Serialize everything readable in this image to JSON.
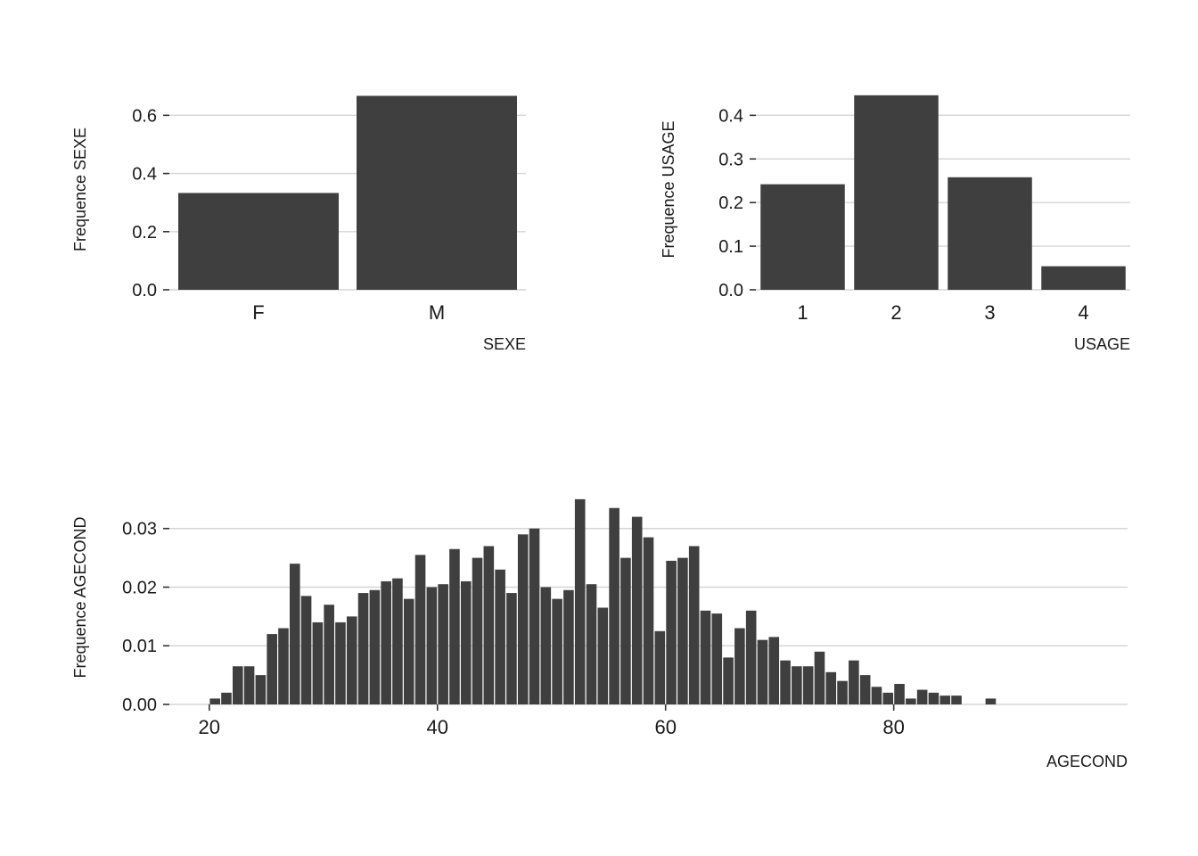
{
  "figure": {
    "background": "#ffffff"
  },
  "colors": {
    "bar": "#3F3F3F",
    "grid": "#D6D6D6",
    "tick": "#333333",
    "text": "#1A1A1A"
  },
  "chart_data": [
    {
      "id": "sexe",
      "type": "bar",
      "categories": [
        "F",
        "M"
      ],
      "values": [
        0.333,
        0.667
      ],
      "xlabel": "SEXE",
      "ylabel": "Frequence SEXE",
      "ylim": [
        0,
        0.69
      ],
      "yticks": [
        0,
        0.2,
        0.4,
        0.6
      ],
      "ytick_labels": [
        "0.0",
        "0.2",
        "0.4",
        "0.6"
      ],
      "grid": "horizontal",
      "legend": "none"
    },
    {
      "id": "usage",
      "type": "bar",
      "categories": [
        "1",
        "2",
        "3",
        "4"
      ],
      "values": [
        0.242,
        0.446,
        0.258,
        0.054
      ],
      "xlabel": "USAGE",
      "ylabel": "Frequence USAGE",
      "ylim": [
        0,
        0.46
      ],
      "yticks": [
        0,
        0.1,
        0.2,
        0.3,
        0.4
      ],
      "ytick_labels": [
        "0.0",
        "0.1",
        "0.2",
        "0.3",
        "0.4"
      ],
      "grid": "horizontal",
      "legend": "none"
    },
    {
      "id": "agecond",
      "type": "histogram",
      "bin_width": 1,
      "x": [
        20,
        21,
        22,
        23,
        24,
        25,
        26,
        27,
        28,
        29,
        30,
        31,
        32,
        33,
        34,
        35,
        36,
        37,
        38,
        39,
        40,
        41,
        42,
        43,
        44,
        45,
        46,
        47,
        48,
        49,
        50,
        51,
        52,
        53,
        54,
        55,
        56,
        57,
        58,
        59,
        60,
        61,
        62,
        63,
        64,
        65,
        66,
        67,
        68,
        69,
        70,
        71,
        72,
        73,
        74,
        75,
        76,
        77,
        78,
        79,
        80,
        81,
        82,
        83,
        84,
        85,
        88
      ],
      "values": [
        0.001,
        0.002,
        0.0065,
        0.0065,
        0.005,
        0.012,
        0.013,
        0.024,
        0.0185,
        0.014,
        0.017,
        0.014,
        0.015,
        0.019,
        0.0195,
        0.021,
        0.0215,
        0.018,
        0.0255,
        0.02,
        0.0205,
        0.0265,
        0.021,
        0.025,
        0.027,
        0.023,
        0.019,
        0.029,
        0.03,
        0.02,
        0.018,
        0.0195,
        0.035,
        0.0205,
        0.0165,
        0.0335,
        0.025,
        0.032,
        0.0285,
        0.0125,
        0.0245,
        0.025,
        0.027,
        0.016,
        0.0155,
        0.008,
        0.013,
        0.016,
        0.011,
        0.0115,
        0.0075,
        0.0065,
        0.0065,
        0.009,
        0.0055,
        0.004,
        0.0075,
        0.005,
        0.003,
        0.002,
        0.0035,
        0.001,
        0.0025,
        0.002,
        0.0015,
        0.0015,
        0.001
      ],
      "xlabel": "AGECOND",
      "ylabel": "Frequence AGECOND",
      "xlim": [
        16.5,
        100.5
      ],
      "ylim": [
        0,
        0.0365
      ],
      "xticks": [
        20,
        40,
        60,
        80
      ],
      "xtick_labels": [
        "20",
        "40",
        "60",
        "80"
      ],
      "yticks": [
        0,
        0.01,
        0.02,
        0.03
      ],
      "ytick_labels": [
        "0.00",
        "0.01",
        "0.02",
        "0.03"
      ],
      "grid": "horizontal",
      "legend": "none"
    }
  ]
}
